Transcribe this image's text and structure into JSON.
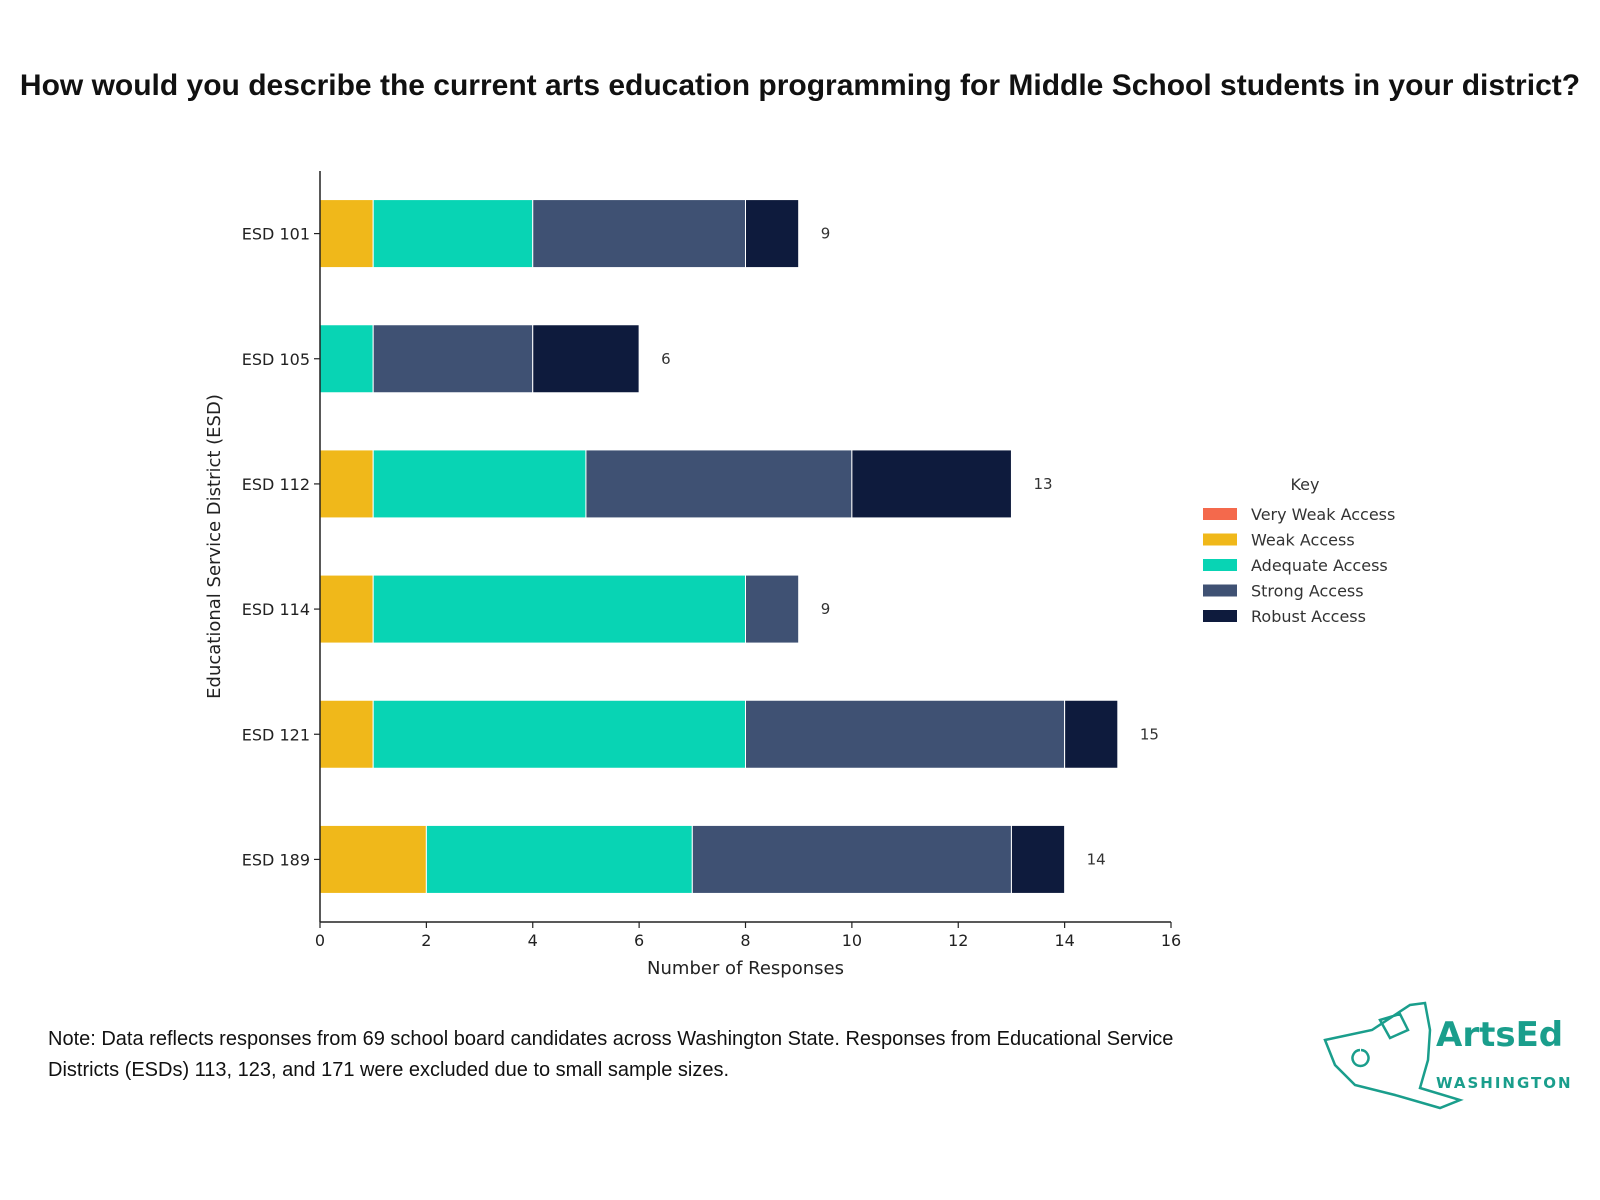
{
  "chart_data": {
    "type": "bar",
    "orientation": "horizontal",
    "stacked": true,
    "title": "How would you describe the current arts education programming for Middle School students in your district?",
    "xlabel": "Number of Responses",
    "ylabel": "Educational Service District (ESD)",
    "xlim": [
      0,
      16
    ],
    "xticks": [
      0,
      2,
      4,
      6,
      8,
      10,
      12,
      14,
      16
    ],
    "categories": [
      "ESD 101",
      "ESD 105",
      "ESD 112",
      "ESD 114",
      "ESD 121",
      "ESD 189"
    ],
    "series": [
      {
        "name": "Very Weak Access",
        "color": "#f4694c",
        "values": [
          0,
          0,
          0,
          0,
          0,
          0
        ]
      },
      {
        "name": "Weak Access",
        "color": "#f0b81a",
        "values": [
          1,
          0,
          1,
          1,
          1,
          2
        ]
      },
      {
        "name": "Adequate Access",
        "color": "#08d4b4",
        "values": [
          3,
          1,
          4,
          7,
          7,
          5
        ]
      },
      {
        "name": "Strong Access",
        "color": "#3f5173",
        "values": [
          4,
          3,
          5,
          1,
          6,
          6
        ]
      },
      {
        "name": "Robust Access",
        "color": "#0e1b3d",
        "values": [
          1,
          2,
          3,
          0,
          1,
          1
        ]
      }
    ],
    "totals": [
      9,
      6,
      13,
      9,
      15,
      14
    ],
    "legend": {
      "title": "Key",
      "placement": "right"
    },
    "grid": false
  },
  "note": "Note: Data reflects responses from 69 school board candidates across Washington State. Responses from Educational Service Districts (ESDs) 113, 123, and 171 were excluded due to small sample sizes.",
  "logo": {
    "line1": "ArtsEd",
    "line2": "WASHINGTON",
    "color": "#1a9e8c"
  }
}
